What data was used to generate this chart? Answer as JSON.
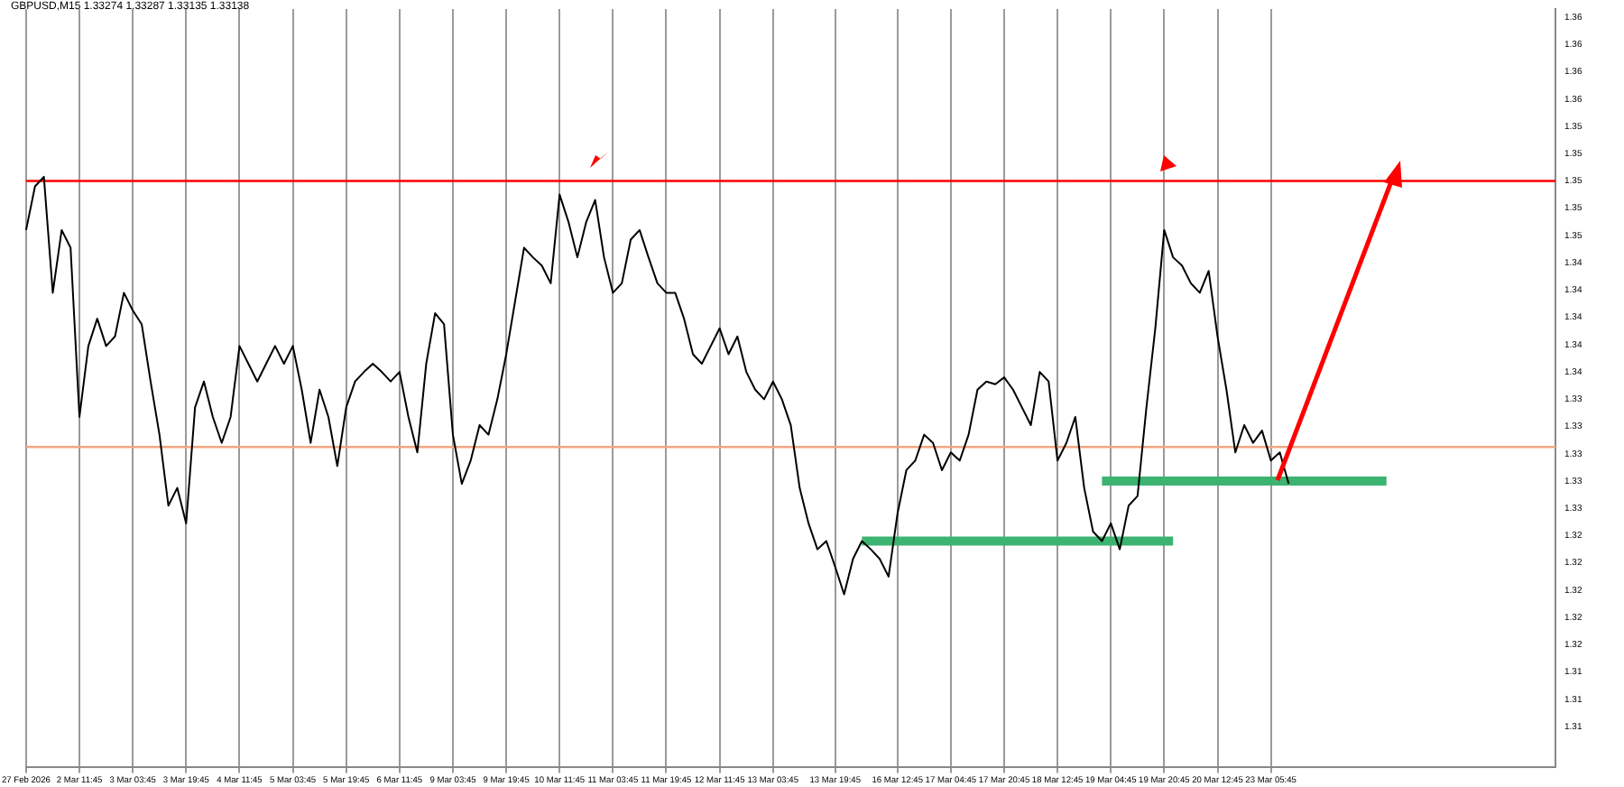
{
  "chart_data": {
    "type": "line",
    "title": "GBPUSD,M15 1.33274 1.33287 1.33135 1.33138",
    "categories": [
      "27 Feb 2026",
      null,
      null,
      null,
      null,
      null,
      "2 Mar 11:45",
      null,
      null,
      null,
      null,
      null,
      "3 Mar 03:45",
      null,
      null,
      null,
      null,
      null,
      "3 Mar 19:45",
      null,
      null,
      null,
      null,
      null,
      "4 Mar 11:45",
      null,
      null,
      null,
      null,
      null,
      "5 Mar 03:45",
      null,
      null,
      null,
      null,
      null,
      "5 Mar 19:45",
      null,
      null,
      null,
      null,
      null,
      "6 Mar 11:45",
      null,
      null,
      null,
      null,
      null,
      "9 Mar 03:45",
      null,
      null,
      null,
      null,
      null,
      "9 Mar 19:45",
      null,
      null,
      null,
      null,
      null,
      "10 Mar 11:45",
      null,
      null,
      null,
      null,
      null,
      "11 Mar 03:45",
      null,
      null,
      null,
      null,
      null,
      "11 Mar 19:45",
      null,
      null,
      null,
      null,
      null,
      "12 Mar 11:45",
      null,
      null,
      null,
      null,
      null,
      "13 Mar 03:45",
      null,
      null,
      null,
      null,
      null,
      null,
      "13 Mar 19:45",
      null,
      null,
      null,
      null,
      null,
      null,
      "16 Mar 12:45",
      null,
      null,
      null,
      null,
      null,
      "17 Mar 04:45",
      null,
      null,
      null,
      null,
      null,
      "17 Mar 20:45",
      null,
      null,
      null,
      null,
      null,
      "18 Mar 12:45",
      null,
      null,
      null,
      null,
      null,
      "19 Mar 04:45",
      null,
      null,
      null,
      null,
      null,
      "19 Mar 20:45",
      null,
      null,
      null,
      null,
      null,
      "20 Mar 12:45",
      null,
      null,
      null,
      null,
      null,
      "23 Mar 05:45",
      null,
      null,
      null,
      null,
      null,
      null,
      null,
      null,
      null,
      null,
      null,
      null,
      null,
      null,
      null,
      null,
      null,
      null,
      null,
      null,
      null,
      null,
      null,
      null,
      null,
      null,
      null,
      null,
      null,
      null,
      null,
      null
    ],
    "series": [
      {
        "color": "#000000",
        "values": [
          1.3464,
          1.3496,
          1.3503,
          1.3418,
          1.3464,
          1.3451,
          1.3327,
          1.3379,
          1.3399,
          1.3379,
          1.3386,
          1.3418,
          1.3405,
          1.3395,
          1.3353,
          1.3314,
          1.3262,
          1.3275,
          1.3249,
          1.3334,
          1.3353,
          1.3327,
          1.3308,
          1.3327,
          1.3379,
          1.3366,
          1.3353,
          1.3366,
          1.3379,
          1.3366,
          1.3379,
          1.3347,
          1.3308,
          1.3347,
          1.3327,
          1.3291,
          1.3334,
          1.3353,
          1.336,
          1.3366,
          1.336,
          1.3353,
          1.336,
          1.3327,
          1.3301,
          1.3366,
          1.3403,
          1.3395,
          1.3314,
          1.3278,
          1.3295,
          1.3321,
          1.3314,
          1.334,
          1.3373,
          1.3412,
          1.3451,
          1.3444,
          1.3438,
          1.3425,
          1.349,
          1.347,
          1.3444,
          1.347,
          1.3486,
          1.3444,
          1.3418,
          1.3425,
          1.3457,
          1.3464,
          1.3444,
          1.3425,
          1.3418,
          1.3418,
          1.3399,
          1.3373,
          1.3366,
          1.3379,
          1.3392,
          1.3373,
          1.3386,
          1.336,
          1.3347,
          1.334,
          1.3353,
          1.334,
          1.3321,
          1.3275,
          1.3249,
          1.323,
          1.3236,
          1.3217,
          1.3197,
          1.3223,
          1.3236,
          1.323,
          1.3223,
          1.321,
          1.3256,
          1.3288,
          1.3295,
          1.3314,
          1.3308,
          1.3288,
          1.3301,
          1.3295,
          1.3314,
          1.3347,
          1.3353,
          1.3351,
          1.3356,
          1.3347,
          1.3334,
          1.3321,
          1.336,
          1.3353,
          1.3295,
          1.3308,
          1.3327,
          1.3275,
          1.3243,
          1.3236,
          1.3249,
          1.323,
          1.3262,
          1.3269,
          1.3334,
          1.3392,
          1.3464,
          1.3444,
          1.3438,
          1.3425,
          1.3418,
          1.3434,
          1.3386,
          1.3347,
          1.3301,
          1.3321,
          1.3308,
          1.3317,
          1.3295,
          1.3301,
          1.3278,
          null,
          null,
          null,
          null,
          null,
          null,
          null,
          null,
          null,
          null,
          null,
          null,
          null,
          null,
          null,
          null,
          null,
          null,
          null,
          null,
          null,
          null,
          null,
          null,
          null,
          null,
          null,
          null,
          null,
          null
        ]
      },
      {
        "color": "#3cb371",
        "values": [
          null,
          null,
          null,
          null,
          null,
          null,
          null,
          null,
          null,
          null,
          null,
          null,
          null,
          null,
          null,
          null,
          null,
          null,
          null,
          null,
          null,
          null,
          null,
          null,
          null,
          null,
          null,
          null,
          null,
          null,
          null,
          null,
          null,
          null,
          null,
          null,
          null,
          null,
          null,
          null,
          null,
          null,
          null,
          null,
          null,
          null,
          null,
          null,
          null,
          null,
          null,
          null,
          null,
          null,
          null,
          null,
          null,
          null,
          null,
          null,
          null,
          null,
          null,
          null,
          null,
          null,
          null,
          null,
          null,
          null,
          null,
          null,
          null,
          null,
          null,
          null,
          null,
          null,
          null,
          null,
          null,
          null,
          null,
          null,
          null,
          null,
          null,
          null,
          null,
          null,
          null,
          null,
          null,
          null,
          1.3236,
          1.3236,
          1.3236,
          1.3236,
          1.3236,
          1.3236,
          1.3236,
          1.3236,
          1.3236,
          1.3236,
          1.3236,
          1.3236,
          1.3236,
          1.3236,
          1.3236,
          1.3236,
          1.3236,
          1.3236,
          1.3236,
          1.3236,
          1.3236,
          1.3236,
          1.3236,
          1.3236,
          1.3236,
          1.3236,
          1.3236,
          1.3236,
          1.3236,
          1.3236,
          1.3236,
          1.3236,
          1.3236,
          1.3236,
          1.3236,
          1.3236,
          null,
          null,
          null,
          null,
          null,
          null,
          null,
          null,
          null,
          null,
          null,
          null,
          null,
          null,
          null,
          null,
          null,
          null,
          null,
          null,
          null,
          null,
          null,
          null,
          null,
          null,
          null,
          null,
          null,
          null,
          null,
          null,
          null,
          null,
          null,
          null,
          null,
          null,
          null,
          null,
          null,
          null,
          null
        ]
      },
      {
        "color": "#3cb371",
        "values": [
          null,
          null,
          null,
          null,
          null,
          null,
          null,
          null,
          null,
          null,
          null,
          null,
          null,
          null,
          null,
          null,
          null,
          null,
          null,
          null,
          null,
          null,
          null,
          null,
          null,
          null,
          null,
          null,
          null,
          null,
          null,
          null,
          null,
          null,
          null,
          null,
          null,
          null,
          null,
          null,
          null,
          null,
          null,
          null,
          null,
          null,
          null,
          null,
          null,
          null,
          null,
          null,
          null,
          null,
          null,
          null,
          null,
          null,
          null,
          null,
          null,
          null,
          null,
          null,
          null,
          null,
          null,
          null,
          null,
          null,
          null,
          null,
          null,
          null,
          null,
          null,
          null,
          null,
          null,
          null,
          null,
          null,
          null,
          null,
          null,
          null,
          null,
          null,
          null,
          null,
          null,
          null,
          null,
          null,
          null,
          null,
          null,
          null,
          null,
          null,
          null,
          null,
          null,
          null,
          null,
          null,
          null,
          null,
          null,
          null,
          null,
          null,
          null,
          null,
          null,
          null,
          null,
          null,
          null,
          null,
          null,
          1.328,
          1.328,
          1.328,
          1.328,
          1.328,
          1.328,
          1.328,
          1.328,
          1.328,
          1.328,
          1.328,
          1.328,
          1.328,
          1.328,
          1.328,
          1.328,
          1.328,
          1.328,
          1.328,
          1.328,
          1.328,
          1.328,
          1.328,
          1.328,
          1.328,
          1.328,
          1.328,
          1.328,
          1.328,
          1.328,
          1.328,
          1.328,
          1.328,
          null,
          null,
          null,
          null,
          null,
          null,
          null,
          null,
          null,
          null,
          null,
          null,
          null,
          null,
          null,
          null,
          null,
          null,
          null
        ]
      }
    ],
    "ylim": [
      1.307,
      1.3626
    ],
    "yticks": [
      {
        "value": 1.31,
        "label": "1.31"
      },
      {
        "value": 1.312,
        "label": "1.31"
      },
      {
        "value": 1.314,
        "label": "1.31"
      },
      {
        "value": 1.316,
        "label": "1.32"
      },
      {
        "value": 1.318,
        "label": "1.32"
      },
      {
        "value": 1.32,
        "label": "1.32"
      },
      {
        "value": 1.322,
        "label": "1.32"
      },
      {
        "value": 1.324,
        "label": "1.32"
      },
      {
        "value": 1.326,
        "label": "1.33"
      },
      {
        "value": 1.328,
        "label": "1.33"
      },
      {
        "value": 1.33,
        "label": "1.33"
      },
      {
        "value": 1.332,
        "label": "1.33"
      },
      {
        "value": 1.334,
        "label": "1.33"
      },
      {
        "value": 1.336,
        "label": "1.34"
      },
      {
        "value": 1.338,
        "label": "1.34"
      },
      {
        "value": 1.34,
        "label": "1.34"
      },
      {
        "value": 1.342,
        "label": "1.34"
      },
      {
        "value": 1.344,
        "label": "1.34"
      },
      {
        "value": 1.346,
        "label": "1.35"
      },
      {
        "value": 1.348,
        "label": "1.35"
      },
      {
        "value": 1.35,
        "label": "1.35"
      },
      {
        "value": 1.352,
        "label": "1.35"
      },
      {
        "value": 1.354,
        "label": "1.35"
      },
      {
        "value": 1.356,
        "label": "1.36"
      },
      {
        "value": 1.358,
        "label": "1.36"
      },
      {
        "value": 1.36,
        "label": "1.36"
      },
      {
        "value": 1.362,
        "label": "1.36"
      }
    ],
    "ref_lines": [
      {
        "axis": "y",
        "value": 1.35,
        "color": "#ff0000"
      },
      {
        "axis": "y",
        "value": 1.3305,
        "color": "#f4a582"
      }
    ],
    "grid": "x",
    "legend": false,
    "marker": "none",
    "line_style": "solid"
  }
}
